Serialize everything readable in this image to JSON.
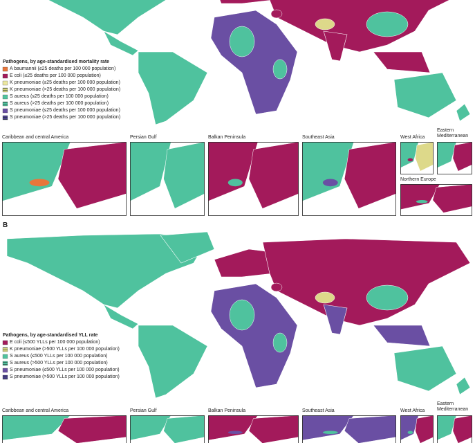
{
  "panel_a": {
    "legend": {
      "title": "Pathogens, by age-standardised mortality rate",
      "items": [
        {
          "label": "A baumannii (≤25 deaths per 100 000 population)",
          "color": "#e8763b",
          "hatched": false
        },
        {
          "label": "E coli (≤25 deaths per 100 000 population)",
          "color": "#a31a5b",
          "hatched": false
        },
        {
          "label": "K pneumoniae (≤25 deaths per 100 000 population)",
          "color": "#ebe7a0",
          "hatched": false
        },
        {
          "label": "K pneumoniae (>25 deaths per 100 000 population)",
          "color": "#d6d37c",
          "hatched": true
        },
        {
          "label": "S aureus (≤25 deaths per 100 000 population)",
          "color": "#4fc29e",
          "hatched": false
        },
        {
          "label": "S aureus (>25 deaths per 100 000 population)",
          "color": "#4fc29e",
          "hatched": true
        },
        {
          "label": "S pneumoniae (≤25 deaths per 100 000 population)",
          "color": "#6a4fa3",
          "hatched": false
        },
        {
          "label": "S pneumoniae (>25 deaths per 100 000 population)",
          "color": "#4b3f8e",
          "hatched": true
        }
      ]
    },
    "insets": [
      "Caribbean and central America",
      "Persian Gulf",
      "Balkan Peninsula",
      "Southeast Asia",
      "West Africa",
      "Eastern Mediterranean",
      "Northern Europe"
    ]
  },
  "panel_b": {
    "label": "B",
    "legend": {
      "title": "Pathogens, by age-standardised YLL rate",
      "items": [
        {
          "label": "E coli (≤500 YLLs per 100 000 population)",
          "color": "#a31a5b",
          "hatched": false
        },
        {
          "label": "K pneumoniae (>500 YLLs per 100 000 population)",
          "color": "#d6d37c",
          "hatched": true
        },
        {
          "label": "S aureus (≤500 YLLs per 100 000 population)",
          "color": "#4fc29e",
          "hatched": false
        },
        {
          "label": "S aureus (>500 YLLs per 100 000 population)",
          "color": "#4fc29e",
          "hatched": true
        },
        {
          "label": "S pneumoniae (≤500 YLLs per 100 000 population)",
          "color": "#6a4fa3",
          "hatched": false
        },
        {
          "label": "S pneumoniae (>500 YLLs per 100 000 population)",
          "color": "#4b3f8e",
          "hatched": true
        }
      ]
    },
    "insets": [
      "Caribbean and central America",
      "Persian Gulf",
      "Balkan Peninsula",
      "Southeast Asia",
      "West Africa",
      "Eastern Mediterranean"
    ]
  }
}
